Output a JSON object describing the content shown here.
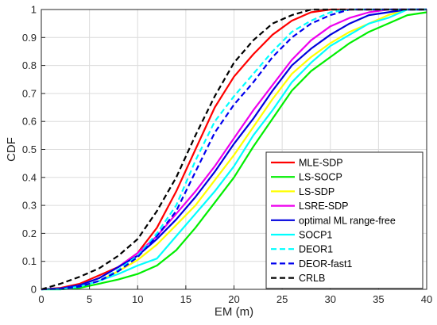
{
  "chart_data": {
    "type": "line",
    "xlabel": "EM (m)",
    "ylabel": "CDF",
    "xlim": [
      0,
      40
    ],
    "ylim": [
      0,
      1
    ],
    "xticks": [
      "0",
      "5",
      "10",
      "15",
      "20",
      "25",
      "30",
      "35",
      "40"
    ],
    "yticks": [
      "0",
      "0.1",
      "0.2",
      "0.3",
      "0.4",
      "0.5",
      "0.6",
      "0.7",
      "0.8",
      "0.9",
      "1"
    ],
    "grid": true,
    "legend_position": "bottom-right",
    "series": [
      {
        "name": "MLE-SDP",
        "color": "#ff0000",
        "dash": false,
        "x": [
          0,
          2,
          4,
          6,
          8,
          10,
          12,
          14,
          16,
          18,
          20,
          22,
          24,
          26,
          28,
          30,
          32,
          34,
          36,
          38,
          40
        ],
        "y": [
          0,
          0.005,
          0.02,
          0.05,
          0.08,
          0.13,
          0.22,
          0.35,
          0.5,
          0.65,
          0.76,
          0.84,
          0.91,
          0.96,
          0.99,
          1.0,
          1.0,
          1.0,
          1.0,
          1.0,
          1.0
        ]
      },
      {
        "name": "LS-SOCP",
        "color": "#00ee00",
        "dash": false,
        "x": [
          0,
          2,
          4,
          6,
          8,
          10,
          12,
          14,
          16,
          18,
          20,
          22,
          24,
          26,
          28,
          30,
          32,
          34,
          36,
          38,
          40
        ],
        "y": [
          0,
          0.0,
          0.005,
          0.02,
          0.035,
          0.055,
          0.085,
          0.14,
          0.22,
          0.31,
          0.4,
          0.51,
          0.61,
          0.71,
          0.78,
          0.83,
          0.88,
          0.92,
          0.95,
          0.98,
          0.99
        ]
      },
      {
        "name": "LS-SDP",
        "color": "#ffff00",
        "dash": false,
        "x": [
          0,
          2,
          4,
          6,
          8,
          10,
          12,
          14,
          16,
          18,
          20,
          22,
          24,
          26,
          28,
          30,
          32,
          34,
          36,
          38,
          40
        ],
        "y": [
          0,
          0.002,
          0.01,
          0.03,
          0.065,
          0.105,
          0.16,
          0.23,
          0.3,
          0.39,
          0.48,
          0.58,
          0.68,
          0.77,
          0.83,
          0.88,
          0.92,
          0.95,
          0.98,
          1.0,
          1.0
        ]
      },
      {
        "name": "LSRE-SDP",
        "color": "#ee00ee",
        "dash": false,
        "x": [
          0,
          2,
          4,
          6,
          8,
          10,
          12,
          14,
          16,
          18,
          20,
          22,
          24,
          26,
          28,
          30,
          32,
          34,
          36,
          38,
          40
        ],
        "y": [
          0,
          0.003,
          0.015,
          0.04,
          0.08,
          0.13,
          0.19,
          0.27,
          0.35,
          0.44,
          0.54,
          0.64,
          0.73,
          0.82,
          0.89,
          0.94,
          0.97,
          0.99,
          1.0,
          1.0,
          1.0
        ]
      },
      {
        "name": "optimal ML range-free",
        "color": "#0000dd",
        "dash": false,
        "x": [
          0,
          2,
          4,
          6,
          8,
          10,
          12,
          14,
          16,
          18,
          20,
          22,
          24,
          26,
          28,
          30,
          32,
          34,
          36,
          38,
          40
        ],
        "y": [
          0,
          0.003,
          0.015,
          0.04,
          0.08,
          0.12,
          0.18,
          0.25,
          0.33,
          0.42,
          0.52,
          0.61,
          0.71,
          0.8,
          0.86,
          0.91,
          0.95,
          0.98,
          0.99,
          1.0,
          1.0
        ]
      },
      {
        "name": "SOCP1",
        "color": "#00ffff",
        "dash": false,
        "x": [
          0,
          2,
          4,
          6,
          8,
          10,
          12,
          14,
          16,
          18,
          20,
          22,
          24,
          26,
          28,
          30,
          32,
          34,
          36,
          38,
          40
        ],
        "y": [
          0,
          0.0,
          0.01,
          0.03,
          0.055,
          0.085,
          0.11,
          0.19,
          0.27,
          0.35,
          0.44,
          0.55,
          0.64,
          0.74,
          0.81,
          0.87,
          0.91,
          0.95,
          0.97,
          1.0,
          1.0
        ]
      },
      {
        "name": "DEOR1",
        "color": "#00ffff",
        "dash": true,
        "x": [
          0,
          2,
          4,
          6,
          8,
          10,
          12,
          14,
          16,
          18,
          20,
          22,
          24,
          26,
          28,
          30,
          32,
          34,
          36,
          38,
          40
        ],
        "y": [
          0,
          0.002,
          0.01,
          0.03,
          0.07,
          0.12,
          0.2,
          0.3,
          0.46,
          0.6,
          0.69,
          0.77,
          0.85,
          0.92,
          0.96,
          0.99,
          1.0,
          1.0,
          1.0,
          1.0,
          1.0
        ]
      },
      {
        "name": "DEOR-fast1",
        "color": "#0000ee",
        "dash": true,
        "x": [
          0,
          2,
          4,
          6,
          8,
          10,
          12,
          14,
          16,
          18,
          20,
          22,
          24,
          26,
          28,
          30,
          32,
          34,
          36,
          38,
          40
        ],
        "y": [
          0,
          0.002,
          0.01,
          0.03,
          0.065,
          0.115,
          0.19,
          0.28,
          0.42,
          0.56,
          0.66,
          0.74,
          0.83,
          0.9,
          0.95,
          0.98,
          1.0,
          1.0,
          1.0,
          1.0,
          1.0
        ]
      },
      {
        "name": "CRLB",
        "color": "#000000",
        "dash": true,
        "x": [
          0,
          2,
          4,
          6,
          8,
          10,
          12,
          14,
          16,
          18,
          20,
          22,
          24,
          26,
          28,
          30,
          32,
          34,
          36,
          38,
          40
        ],
        "y": [
          0,
          0.02,
          0.045,
          0.075,
          0.12,
          0.18,
          0.28,
          0.4,
          0.55,
          0.69,
          0.81,
          0.89,
          0.95,
          0.98,
          1.0,
          1.0,
          1.0,
          1.0,
          1.0,
          1.0,
          1.0
        ]
      }
    ]
  }
}
